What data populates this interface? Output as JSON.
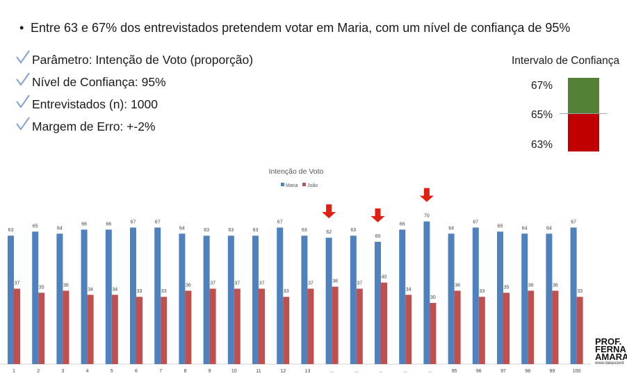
{
  "headline": "Entre 63 e 67% dos entrevistados pretendem votar em Maria, com um nível de confiança de 95%",
  "parameters": [
    "Parâmetro: Intenção de Voto (proporção)",
    "Nível de Confiança: 95%",
    "Entrevistados (n): 1000",
    "Margem de Erro: +-2%"
  ],
  "confidence_interval": {
    "title": "Intervalo de Confiança",
    "upper_label": "67%",
    "center_label": "65%",
    "lower_label": "63%",
    "upper_color": "#538135",
    "lower_color": "#c00000"
  },
  "logo": {
    "lines": [
      "PROF.",
      "FERNA",
      "AMARA"
    ],
    "url": "www.datascient"
  },
  "colors": {
    "maria": "#4f81bd",
    "joao": "#c0504d",
    "arrow": "#e02010",
    "check": "#7fa3d4"
  },
  "chart_data": {
    "type": "bar",
    "title": "Intenção de Voto",
    "legend_position": "top",
    "categories": [
      "1",
      "2",
      "3",
      "4",
      "5",
      "6",
      "7",
      "8",
      "9",
      "10",
      "11",
      "12",
      "13",
      "...",
      "...",
      "...",
      "...",
      "...",
      "95",
      "96",
      "97",
      "98",
      "99",
      "100"
    ],
    "series": [
      {
        "name": "Maria",
        "values": [
          63,
          65,
          64,
          66,
          66,
          67,
          67,
          64,
          63,
          63,
          63,
          67,
          63,
          62,
          63,
          60,
          66,
          70,
          64,
          67,
          65,
          64,
          64,
          67
        ]
      },
      {
        "name": "João",
        "values": [
          37,
          35,
          36,
          34,
          34,
          33,
          33,
          36,
          37,
          37,
          37,
          33,
          37,
          38,
          37,
          40,
          34,
          30,
          36,
          33,
          35,
          36,
          36,
          33
        ]
      }
    ],
    "highlighted_categories": [
      13,
      15,
      17
    ],
    "ylim": [
      0,
      75
    ],
    "grid": false
  }
}
